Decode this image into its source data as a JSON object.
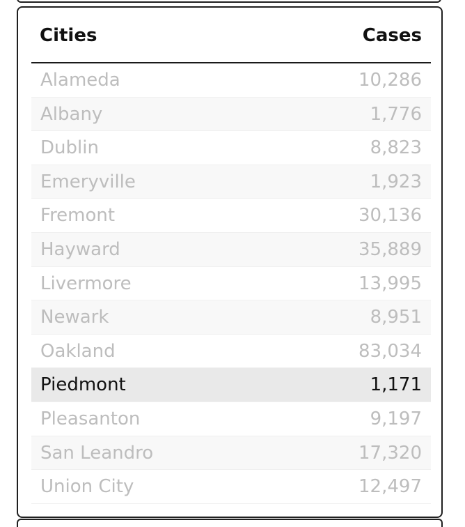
{
  "table": {
    "headers": {
      "city": "Cities",
      "cases": "Cases"
    },
    "rows": [
      {
        "city": "Alameda",
        "cases": "10,286"
      },
      {
        "city": "Albany",
        "cases": "1,776"
      },
      {
        "city": "Dublin",
        "cases": "8,823"
      },
      {
        "city": "Emeryville",
        "cases": "1,923"
      },
      {
        "city": "Fremont",
        "cases": "30,136"
      },
      {
        "city": "Hayward",
        "cases": "35,889"
      },
      {
        "city": "Livermore",
        "cases": "13,995"
      },
      {
        "city": "Newark",
        "cases": "8,951"
      },
      {
        "city": "Oakland",
        "cases": "83,034"
      },
      {
        "city": "Piedmont",
        "cases": "1,171"
      },
      {
        "city": "Pleasanton",
        "cases": "9,197"
      },
      {
        "city": "San Leandro",
        "cases": "17,320"
      },
      {
        "city": "Union City",
        "cases": "12,497"
      }
    ],
    "selected_city": "Piedmont"
  }
}
